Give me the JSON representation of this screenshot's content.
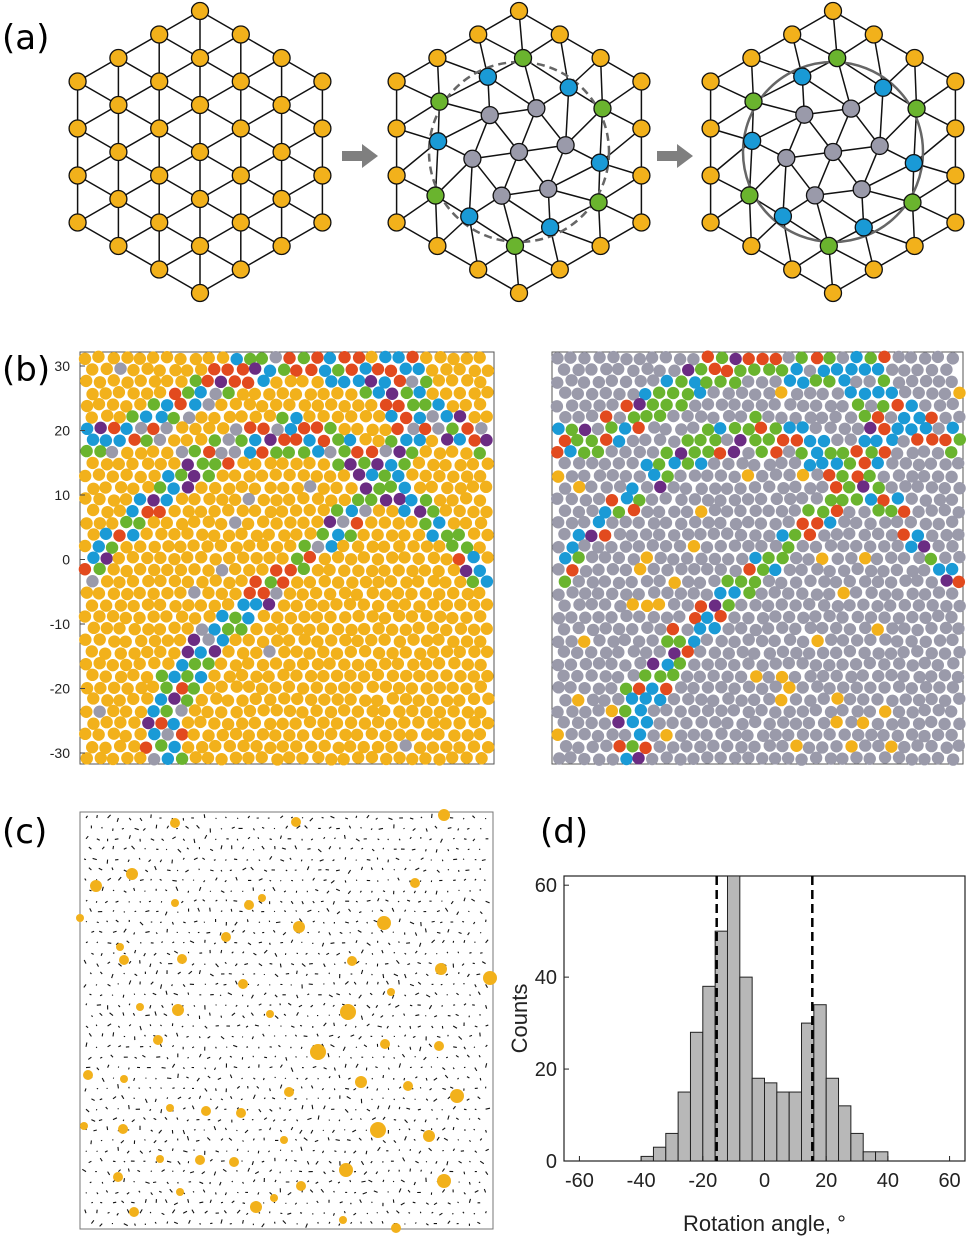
{
  "panels": {
    "a": "(a)",
    "b": "(b)",
    "c": "(c)",
    "d": "(d)"
  },
  "colors": {
    "yellow": "#f2b11b",
    "blue": "#1a9ad6",
    "green": "#6ab42e",
    "gray": "#9a9aaa",
    "red": "#e24a1e",
    "purple": "#6b2c83",
    "arrow": "#7f7f7f",
    "bar": "#b8b8b8"
  },
  "panel_b": {
    "yticks": [
      "30",
      "20",
      "10",
      "0",
      "-10",
      "-20",
      "-30"
    ]
  },
  "chart_data": {
    "type": "bar",
    "xlabel": "Rotation angle, °",
    "ylabel": "Counts",
    "xlim": [
      -65,
      65
    ],
    "ylim": [
      0,
      62
    ],
    "xticks": [
      "-60",
      "-40",
      "-20",
      "0",
      "20",
      "40",
      "60"
    ],
    "yticks": [
      "0",
      "20",
      "40",
      "60"
    ],
    "bin_width": 4,
    "bin_starts": [
      -40,
      -36,
      -32,
      -28,
      -24,
      -20,
      -16,
      -12,
      -8,
      -4,
      0,
      4,
      8,
      12,
      16,
      20,
      24,
      28,
      32,
      36
    ],
    "values": [
      1,
      3,
      6,
      15,
      28,
      38,
      50,
      62,
      40,
      18,
      17,
      15,
      15,
      30,
      34,
      18,
      12,
      6,
      2,
      2
    ],
    "vlines": [
      -15.5,
      15.5
    ]
  }
}
